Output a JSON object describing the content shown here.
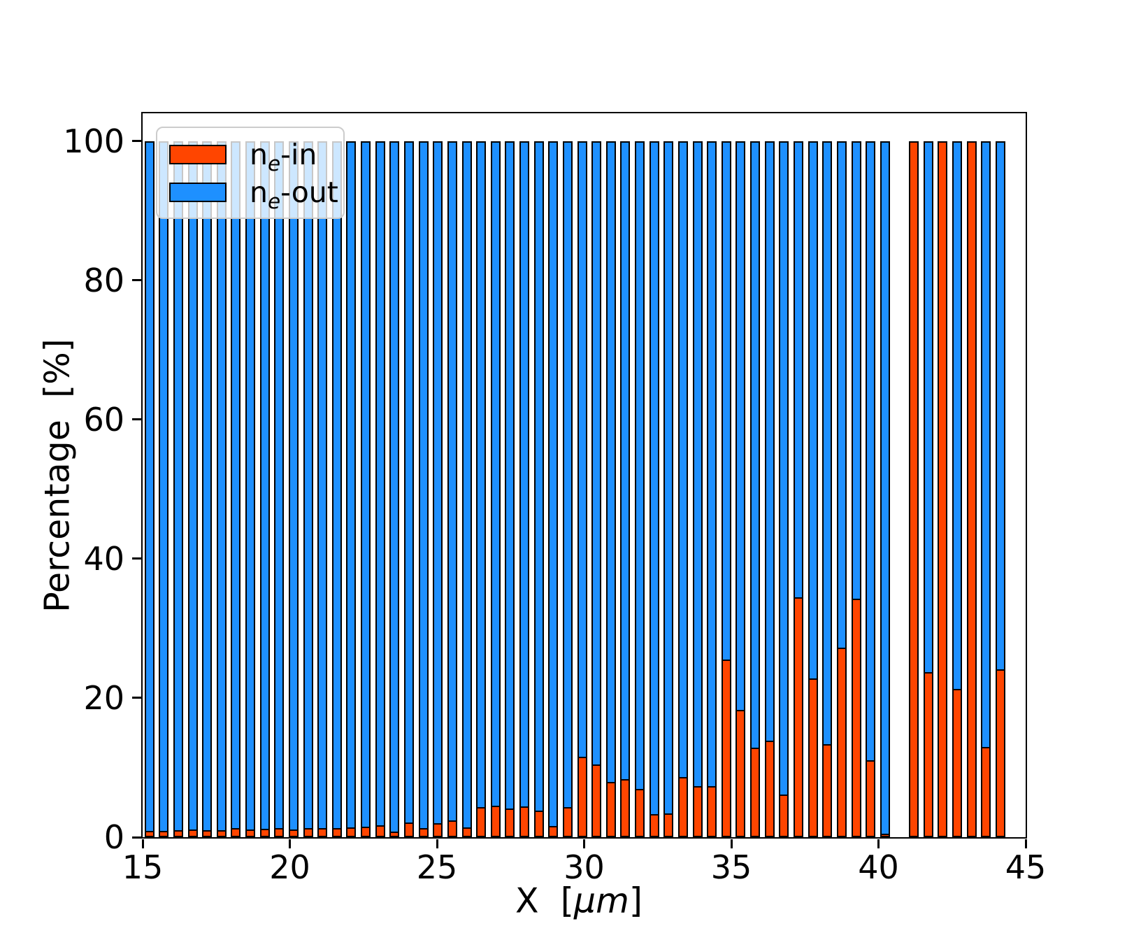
{
  "chart_data": {
    "type": "bar",
    "stacked": true,
    "percent_stacked": true,
    "title": "",
    "xlabel": "X [μm]",
    "xlabel_prefix": "X  [",
    "xlabel_math": "μm",
    "xlabel_suffix": "]",
    "ylabel": "Percentage  [%]",
    "xlim": [
      15,
      45
    ],
    "ylim": [
      0,
      104
    ],
    "xticks": [
      "15",
      "20",
      "25",
      "30",
      "35",
      "40",
      "45"
    ],
    "xtick_values": [
      15,
      20,
      25,
      30,
      35,
      40,
      45
    ],
    "yticks": [
      "0",
      "20",
      "40",
      "60",
      "80",
      "100"
    ],
    "ytick_values": [
      0,
      20,
      40,
      60,
      80,
      100
    ],
    "grid": false,
    "legend_position": "upper left",
    "bar_step_um": 0.49,
    "bar_width_um": 0.33,
    "gap_slot_x": 40.71,
    "x": [
      15.23,
      15.72,
      16.21,
      16.7,
      17.19,
      17.68,
      18.17,
      18.66,
      19.15,
      19.64,
      20.13,
      20.62,
      21.11,
      21.6,
      22.09,
      22.58,
      23.07,
      23.56,
      24.05,
      24.54,
      25.03,
      25.52,
      26.01,
      26.5,
      26.99,
      27.48,
      27.97,
      28.46,
      28.95,
      29.44,
      29.93,
      30.42,
      30.91,
      31.4,
      31.89,
      32.38,
      32.87,
      33.36,
      33.85,
      34.34,
      34.83,
      35.32,
      35.81,
      36.3,
      36.79,
      37.28,
      37.77,
      38.26,
      38.75,
      39.24,
      39.73,
      40.22,
      40.71,
      41.2,
      41.69,
      42.18,
      42.67,
      43.16,
      43.65,
      44.14
    ],
    "series": [
      {
        "name": "ne-in",
        "color": "#ff4500",
        "values": [
          1.0,
          1.0,
          1.1,
          1.2,
          1.1,
          1.1,
          1.4,
          1.2,
          1.3,
          1.4,
          1.2,
          1.4,
          1.4,
          1.4,
          1.5,
          1.6,
          1.8,
          0.9,
          2.2,
          1.4,
          2.1,
          2.5,
          1.5,
          4.4,
          4.6,
          4.2,
          4.5,
          3.9,
          1.7,
          4.4,
          11.6,
          10.5,
          8.0,
          8.4,
          7.0,
          3.4,
          3.5,
          8.7,
          7.4,
          7.4,
          25.6,
          18.3,
          12.9,
          13.9,
          6.2,
          34.5,
          22.9,
          13.4,
          27.3,
          34.3,
          11.1,
          0.6,
          null,
          100,
          23.8,
          100,
          21.4,
          100,
          13.0,
          24.2
        ]
      },
      {
        "name": "ne-out",
        "color": "#1e90ff",
        "values": [
          99.0,
          99.0,
          98.9,
          98.8,
          98.9,
          98.9,
          98.6,
          98.8,
          98.7,
          98.6,
          98.8,
          98.6,
          98.6,
          98.6,
          98.5,
          98.4,
          98.2,
          99.1,
          97.8,
          98.6,
          97.9,
          97.5,
          98.5,
          95.6,
          95.4,
          95.8,
          95.5,
          96.1,
          98.3,
          95.6,
          88.4,
          89.5,
          92.0,
          91.6,
          93.0,
          96.6,
          96.5,
          91.3,
          92.6,
          92.6,
          74.4,
          81.7,
          87.1,
          86.1,
          93.8,
          65.5,
          77.1,
          86.6,
          72.7,
          65.7,
          88.9,
          99.4,
          null,
          0.0,
          76.2,
          0.0,
          78.6,
          0.0,
          87.0,
          75.8
        ]
      }
    ]
  },
  "legend": {
    "items": [
      {
        "base": "n",
        "sub": "e",
        "rest": "-in",
        "color": "#ff4500"
      },
      {
        "base": "n",
        "sub": "e",
        "rest": "-out",
        "color": "#1e90ff"
      }
    ]
  },
  "style": {
    "bar_edge_color": "#000000",
    "spine_color": "#000000",
    "background": "#ffffff",
    "legend_border_color": "#cccccc",
    "in_color": "#ff4500",
    "out_color": "#1e90ff"
  }
}
